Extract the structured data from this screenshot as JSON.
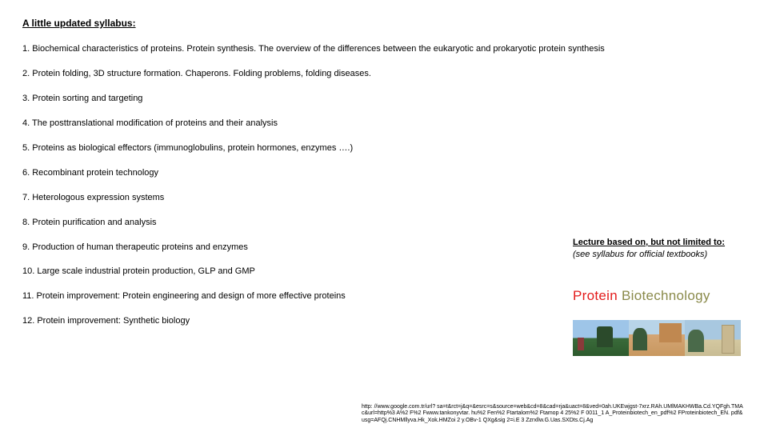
{
  "heading": "A little updated syllabus:",
  "items": {
    "i1": "1.  Biochemical characteristics of proteins. Protein synthesis. The overview of the differences between the eukaryotic and prokaryotic protein synthesis",
    "i2": "2. Protein folding, 3D structure formation. Chaperons. Folding problems, folding diseases.",
    "i3": "3. Protein sorting and targeting",
    "i4": "4. The posttranslational modification of proteins and their analysis",
    "i5": "5. Proteins as biological effectors (immunoglobulins, protein hormones, enzymes ….)",
    "i6": "6. Recombinant protein technology",
    "i7": "7. Heterologous expression systems",
    "i8": "8. Protein purification and analysis",
    "i9": "9. Production of human therapeutic proteins and enzymes",
    "i10": "10. Large scale industrial protein production, GLP and GMP",
    "i11": "11. Protein improvement: Protein engineering and design of more effective proteins",
    "i12": "12. Protein improvement: Synthetic biology"
  },
  "sidenote": {
    "line1": "Lecture based on, but not limited to:",
    "line2": "(see syllabus for official textbooks)"
  },
  "logo": {
    "sub": "",
    "part1": "Protein ",
    "part2": "Biotechnology"
  },
  "url": "http: //www.google.com.tr/url? sa=t&rct=j&q=&esrc=s&source=web&cd=8&cad=rja&uact=8&ved=0ah.UKEwjgst-7xrz.RAh.UMlMAKHWBa.Cd.YQFgh.TMAc&url=http%3 A%2 F%2 Fwww.tankonyvtar. hu%2 Fen%2 Ftartalom%2 Ftamop 4 25%2 F 0011_1 A_Proteinbiotech_en_pdf%2 FProteinbiotech_EN. pdf&usg=AFQj.CNHMllyva.Hk_Xok.HMZoi 2 y.OBv-1 QXg&sig 2=i.E 3 Zzrxllw.G.Uas.SXDts.Cj.Ag"
}
